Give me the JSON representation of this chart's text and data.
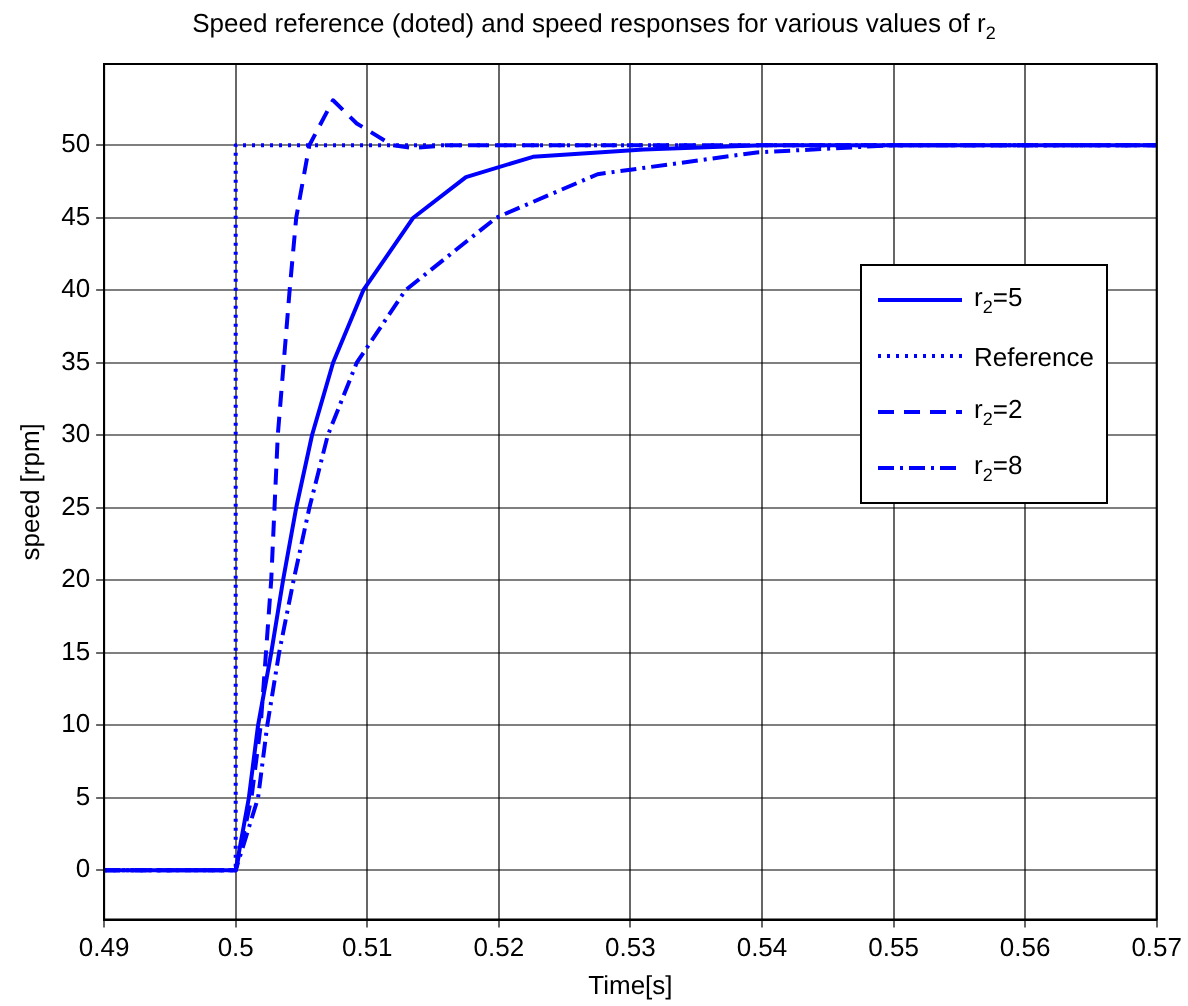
{
  "chart_data": {
    "type": "line",
    "title": "Speed reference (doted) and speed responses for various values of r$_{2}$",
    "xlabel": "Time[s]",
    "ylabel": "speed [rpm]",
    "xlim": [
      0.49,
      0.57
    ],
    "xticks": [
      0.49,
      0.5,
      0.51,
      0.52,
      0.53,
      0.54,
      0.55,
      0.56,
      0.57
    ],
    "ylim": [
      -3.4,
      55.6
    ],
    "yticks": [
      0,
      5,
      10,
      15,
      20,
      25,
      30,
      35,
      40,
      45,
      50
    ],
    "grid": true,
    "legend": "right",
    "marker": "none",
    "series": [
      {
        "name": "r$_{2}$=5",
        "color": "#0000ff",
        "line_style": "solid",
        "x": [
          0.49,
          0.5,
          0.501,
          0.5017,
          0.5027,
          0.5036,
          0.5046,
          0.5058,
          0.5074,
          0.5097,
          0.5135,
          0.5175,
          0.5226,
          0.531,
          0.54,
          0.57
        ],
        "values": [
          0,
          0,
          5,
          10,
          15,
          20,
          25,
          30,
          35,
          40,
          45,
          47.8,
          49.2,
          49.7,
          50,
          50
        ]
      },
      {
        "name": "Reference",
        "color": "#0000ff",
        "line_style": "dotted",
        "x": [
          0.49,
          0.5,
          0.5,
          0.57
        ],
        "values": [
          0,
          0,
          50,
          50
        ]
      },
      {
        "name": "r$_{2}$=2",
        "color": "#0000ff",
        "line_style": "dashed",
        "x": [
          0.49,
          0.5,
          0.5012,
          0.5019,
          0.5027,
          0.5032,
          0.5041,
          0.5046,
          0.5056,
          0.5074,
          0.5092,
          0.5119,
          0.5135,
          0.516,
          0.57
        ],
        "values": [
          0,
          0,
          5,
          10,
          20,
          30,
          40,
          45,
          50,
          53.1,
          51.5,
          50,
          49.8,
          50,
          50
        ]
      },
      {
        "name": "r$_{2}$=8",
        "color": "#0000ff",
        "line_style": "dashdot",
        "x": [
          0.49,
          0.5,
          0.5017,
          0.5024,
          0.5033,
          0.5044,
          0.5056,
          0.507,
          0.5092,
          0.5129,
          0.5198,
          0.5275,
          0.5396,
          0.55,
          0.57
        ],
        "values": [
          0,
          0,
          5,
          10,
          15,
          20,
          25,
          30,
          35,
          40,
          45,
          48,
          49.5,
          50,
          50
        ]
      }
    ]
  }
}
